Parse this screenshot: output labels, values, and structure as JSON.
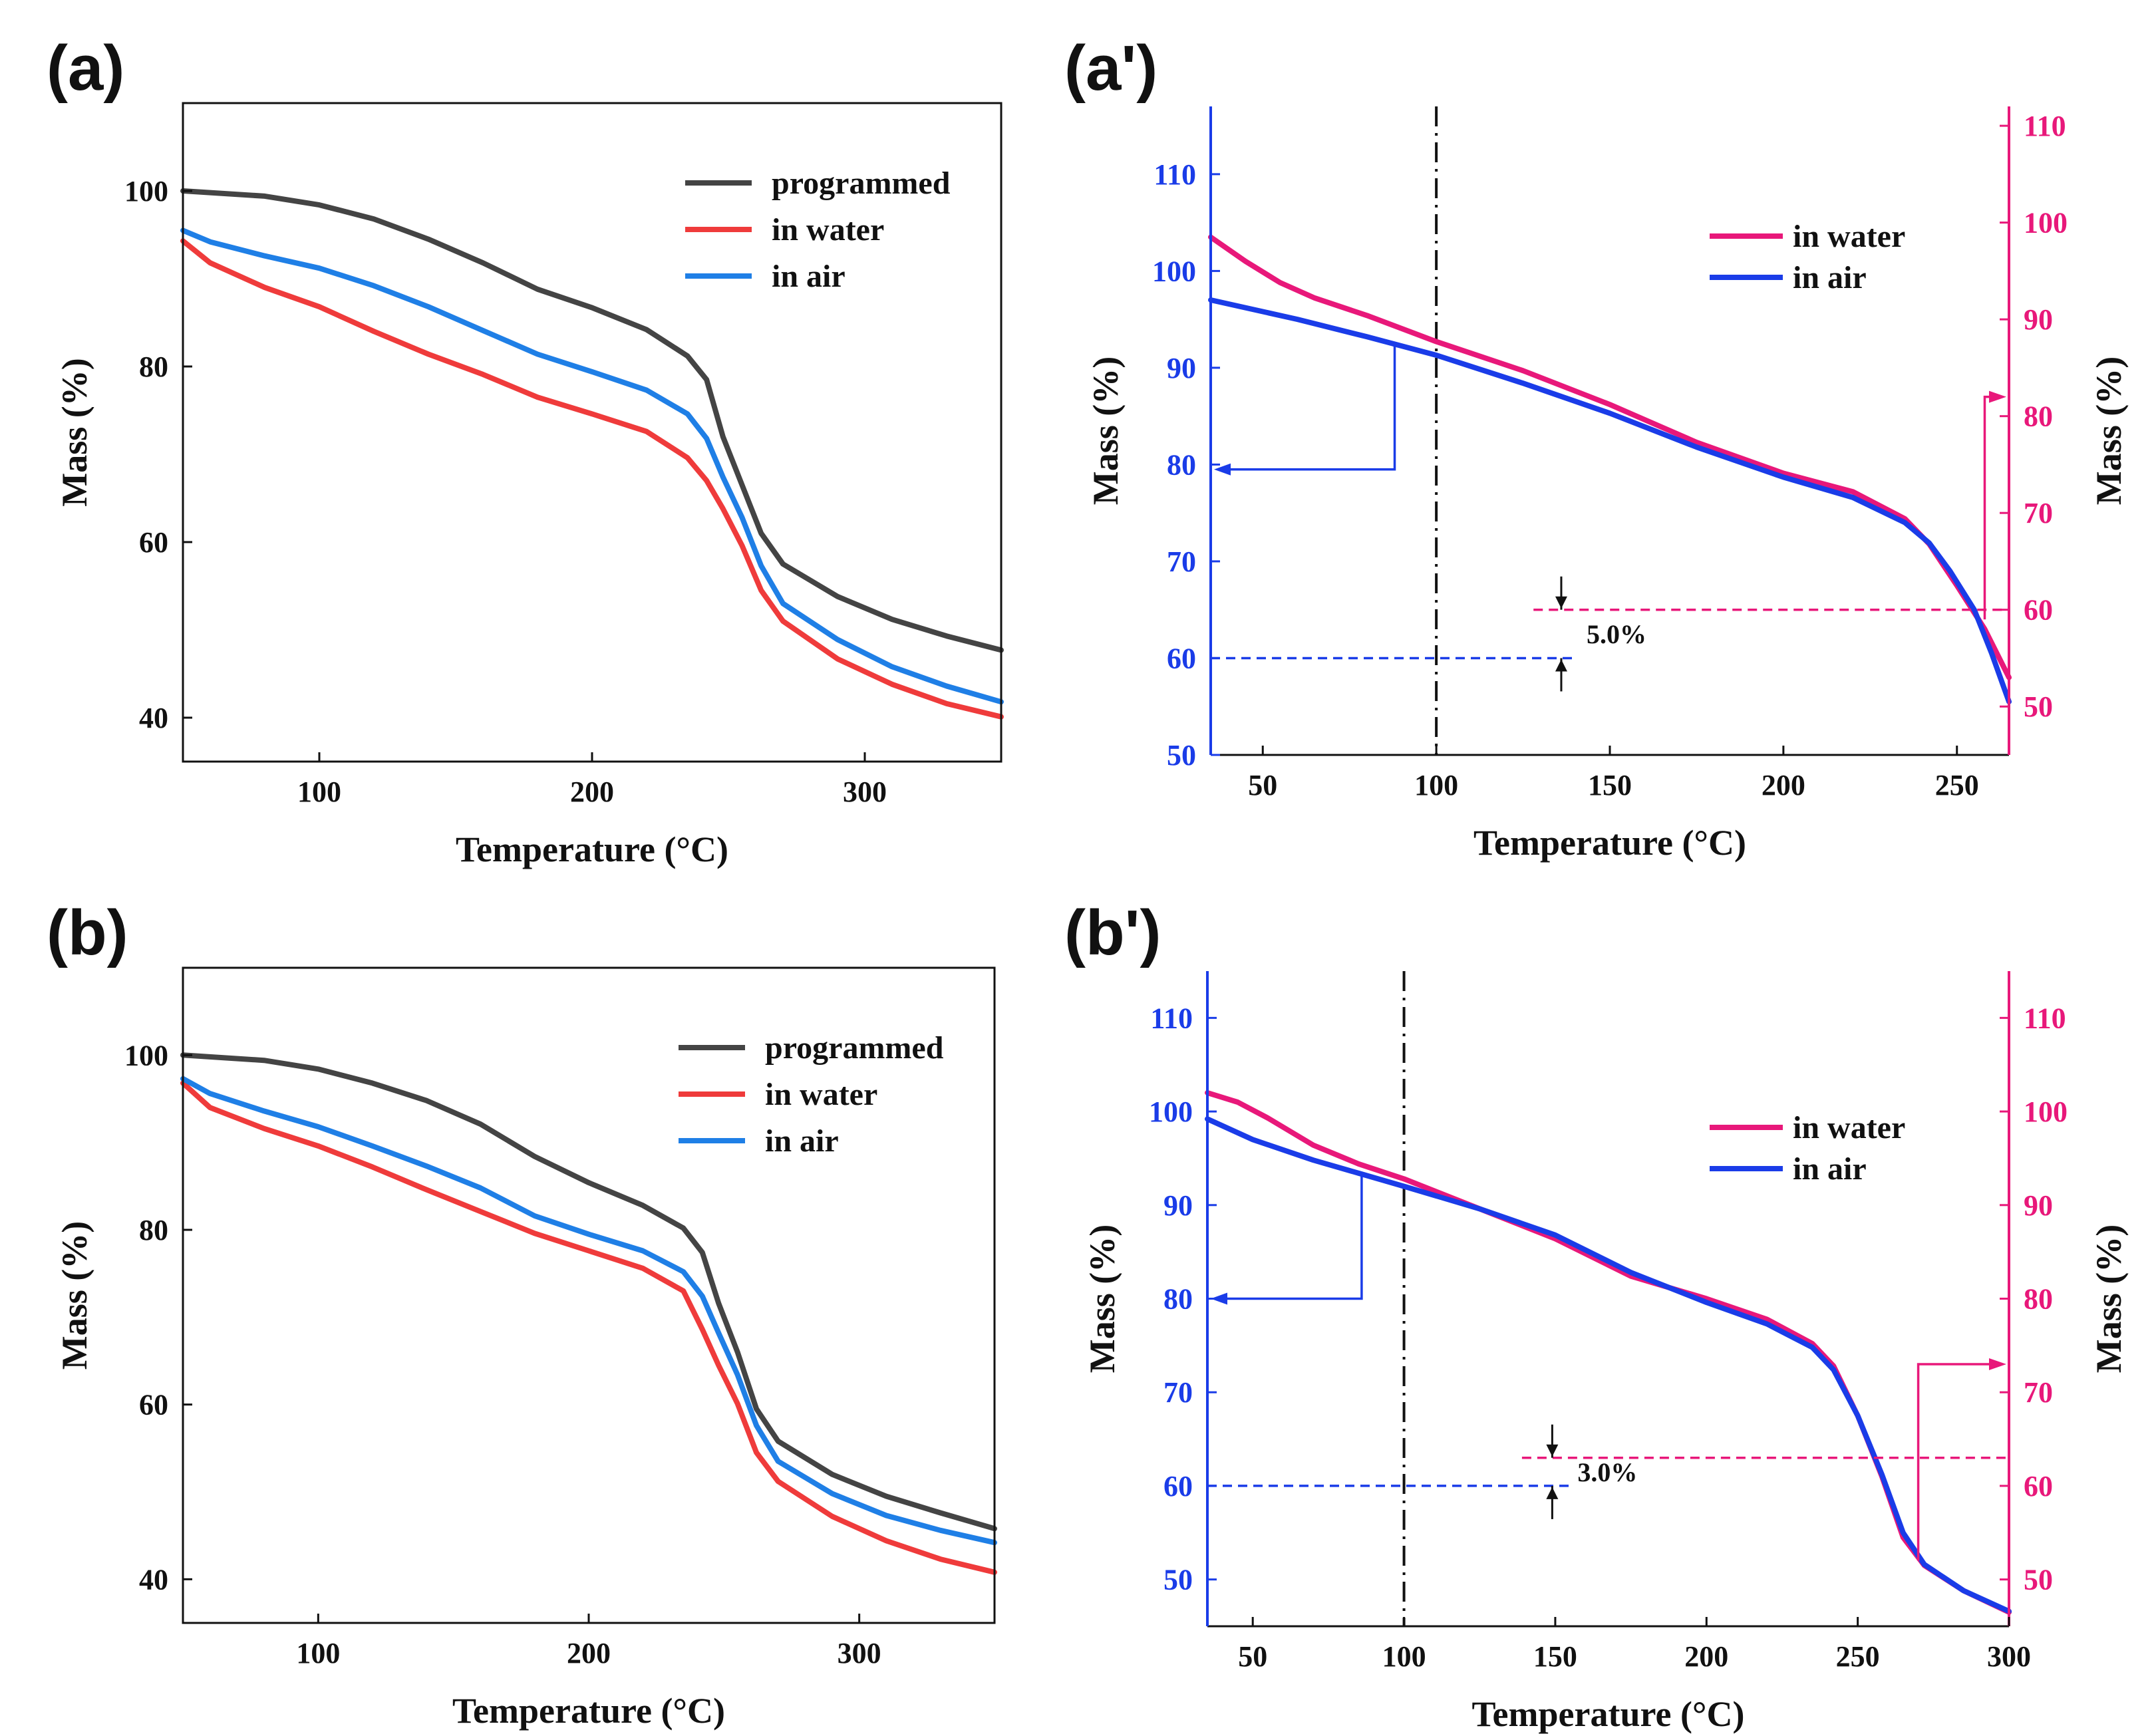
{
  "chart_data": [
    {
      "panel": "(a)",
      "type": "line",
      "xlabel": "Temperature (°C)",
      "ylabel": "Mass (%)",
      "xlim": [
        50,
        350
      ],
      "ylim": [
        35,
        110
      ],
      "xticks": [
        100,
        200,
        300
      ],
      "yticks": [
        40,
        60,
        80,
        100
      ],
      "legend": "top-right",
      "series": [
        {
          "name": "programmed",
          "color": "#444444",
          "points": [
            [
              50,
              100
            ],
            [
              80,
              99.4
            ],
            [
              100,
              98.4
            ],
            [
              120,
              96.8
            ],
            [
              140,
              94.5
            ],
            [
              160,
              91.8
            ],
            [
              180,
              88.8
            ],
            [
              200,
              86.7
            ],
            [
              220,
              84.2
            ],
            [
              235,
              81.2
            ],
            [
              242,
              78.5
            ],
            [
              248,
              72
            ],
            [
              255,
              66.5
            ],
            [
              262,
              61
            ],
            [
              270,
              57.5
            ],
            [
              290,
              53.8
            ],
            [
              310,
              51.2
            ],
            [
              330,
              49.3
            ],
            [
              350,
              47.7
            ]
          ]
        },
        {
          "name": "in water",
          "color": "#ef3b3b",
          "points": [
            [
              50,
              94.3
            ],
            [
              60,
              91.8
            ],
            [
              80,
              89
            ],
            [
              100,
              86.8
            ],
            [
              120,
              84
            ],
            [
              140,
              81.4
            ],
            [
              160,
              79.1
            ],
            [
              180,
              76.5
            ],
            [
              200,
              74.6
            ],
            [
              220,
              72.6
            ],
            [
              235,
              69.6
            ],
            [
              242,
              67
            ],
            [
              248,
              63.8
            ],
            [
              255,
              59.6
            ],
            [
              262,
              54.5
            ],
            [
              270,
              51
            ],
            [
              290,
              46.7
            ],
            [
              310,
              43.8
            ],
            [
              330,
              41.6
            ],
            [
              350,
              40.1
            ]
          ]
        },
        {
          "name": "in air",
          "color": "#1f7fe6",
          "points": [
            [
              50,
              95.5
            ],
            [
              60,
              94.2
            ],
            [
              80,
              92.6
            ],
            [
              100,
              91.2
            ],
            [
              120,
              89.2
            ],
            [
              140,
              86.8
            ],
            [
              160,
              84.1
            ],
            [
              180,
              81.4
            ],
            [
              200,
              79.4
            ],
            [
              220,
              77.3
            ],
            [
              235,
              74.6
            ],
            [
              242,
              71.8
            ],
            [
              248,
              67.4
            ],
            [
              255,
              62.8
            ],
            [
              262,
              57.3
            ],
            [
              270,
              53
            ],
            [
              290,
              48.9
            ],
            [
              310,
              45.8
            ],
            [
              330,
              43.6
            ],
            [
              350,
              41.8
            ]
          ]
        }
      ]
    },
    {
      "panel": "(a')",
      "type": "line",
      "xlabel": "Temperature (°C)",
      "ylabel_left": "Mass (%)",
      "ylabel_right": "Mass (%)",
      "xlim": [
        35,
        265
      ],
      "ylim_left": [
        50,
        117
      ],
      "ylim_right": [
        45,
        112
      ],
      "xticks": [
        50,
        100,
        150,
        200,
        250
      ],
      "yticks_left": [
        50,
        60,
        70,
        80,
        90,
        100,
        110
      ],
      "yticks_right": [
        50,
        60,
        70,
        80,
        90,
        100,
        110
      ],
      "left_axis_color": "#1a3ce8",
      "right_axis_color": "#e8187a",
      "legend": "top-right",
      "vline_x": 100,
      "annotation": "5.0%",
      "hline_left": {
        "y": 60,
        "color": "#1a3ce8"
      },
      "hline_right": {
        "y": 60,
        "color": "#e8187a"
      },
      "series": [
        {
          "name": "in water",
          "axis": "right",
          "color": "#e8187a",
          "points": [
            [
              35,
              98.5
            ],
            [
              45,
              96
            ],
            [
              55,
              93.8
            ],
            [
              65,
              92.2
            ],
            [
              80,
              90.4
            ],
            [
              100,
              87.7
            ],
            [
              125,
              84.7
            ],
            [
              150,
              81.2
            ],
            [
              175,
              77.3
            ],
            [
              200,
              74.1
            ],
            [
              220,
              72.2
            ],
            [
              235,
              69.4
            ],
            [
              242,
              66.8
            ],
            [
              250,
              62.5
            ],
            [
              258,
              58
            ],
            [
              265,
              53
            ]
          ]
        },
        {
          "name": "in air",
          "axis": "left",
          "color": "#1a3ce8",
          "points": [
            [
              35,
              97
            ],
            [
              60,
              95
            ],
            [
              80,
              93.2
            ],
            [
              100,
              91.3
            ],
            [
              125,
              88.4
            ],
            [
              150,
              85.3
            ],
            [
              175,
              81.8
            ],
            [
              200,
              78.7
            ],
            [
              220,
              76.6
            ],
            [
              235,
              74
            ],
            [
              242,
              71.9
            ],
            [
              248,
              69
            ],
            [
              255,
              65
            ],
            [
              260,
              60.5
            ],
            [
              265,
              55.5
            ]
          ]
        }
      ]
    },
    {
      "panel": "(b)",
      "type": "line",
      "xlabel": "Temperature (°C)",
      "ylabel": "Mass (%)",
      "xlim": [
        50,
        350
      ],
      "ylim": [
        35,
        110
      ],
      "xticks": [
        100,
        200,
        300
      ],
      "yticks": [
        40,
        60,
        80,
        100
      ],
      "legend": "top-right",
      "series": [
        {
          "name": "programmed",
          "color": "#444444",
          "points": [
            [
              50,
              100
            ],
            [
              80,
              99.4
            ],
            [
              100,
              98.4
            ],
            [
              120,
              96.8
            ],
            [
              140,
              94.8
            ],
            [
              160,
              92.1
            ],
            [
              180,
              88.4
            ],
            [
              200,
              85.4
            ],
            [
              220,
              82.8
            ],
            [
              235,
              80.2
            ],
            [
              242,
              77.4
            ],
            [
              248,
              71.6
            ],
            [
              255,
              66
            ],
            [
              262,
              59.5
            ],
            [
              270,
              55.8
            ],
            [
              290,
              52
            ],
            [
              310,
              49.5
            ],
            [
              330,
              47.6
            ],
            [
              350,
              45.8
            ]
          ]
        },
        {
          "name": "in water",
          "color": "#ef3b3b",
          "points": [
            [
              50,
              96.8
            ],
            [
              60,
              94
            ],
            [
              80,
              91.6
            ],
            [
              100,
              89.6
            ],
            [
              120,
              87.2
            ],
            [
              140,
              84.6
            ],
            [
              160,
              82.1
            ],
            [
              180,
              79.6
            ],
            [
              200,
              77.6
            ],
            [
              220,
              75.6
            ],
            [
              235,
              73
            ],
            [
              242,
              68.6
            ],
            [
              248,
              64.5
            ],
            [
              255,
              60.1
            ],
            [
              262,
              54.5
            ],
            [
              270,
              51.2
            ],
            [
              290,
              47.2
            ],
            [
              310,
              44.4
            ],
            [
              330,
              42.3
            ],
            [
              350,
              40.8
            ]
          ]
        },
        {
          "name": "in air",
          "color": "#1f7fe6",
          "points": [
            [
              50,
              97.3
            ],
            [
              60,
              95.6
            ],
            [
              80,
              93.6
            ],
            [
              100,
              91.8
            ],
            [
              120,
              89.6
            ],
            [
              140,
              87.3
            ],
            [
              160,
              84.8
            ],
            [
              180,
              81.6
            ],
            [
              200,
              79.5
            ],
            [
              220,
              77.6
            ],
            [
              235,
              75.2
            ],
            [
              242,
              72.4
            ],
            [
              248,
              68.2
            ],
            [
              255,
              63.4
            ],
            [
              262,
              57.6
            ],
            [
              270,
              53.5
            ],
            [
              290,
              49.8
            ],
            [
              310,
              47.3
            ],
            [
              330,
              45.6
            ],
            [
              350,
              44.2
            ]
          ]
        }
      ]
    },
    {
      "panel": "(b')",
      "type": "line",
      "xlabel": "Temperature (°C)",
      "ylabel_left": "Mass (%)",
      "ylabel_right": "Mass (%)",
      "xlim": [
        35,
        300
      ],
      "ylim_left": [
        45,
        115
      ],
      "ylim_right": [
        45,
        115
      ],
      "xticks": [
        50,
        100,
        150,
        200,
        250,
        300
      ],
      "yticks_left": [
        50,
        60,
        70,
        80,
        90,
        100,
        110
      ],
      "yticks_right": [
        50,
        60,
        70,
        80,
        90,
        100,
        110
      ],
      "left_axis_color": "#1a3ce8",
      "right_axis_color": "#e8187a",
      "legend": "top-right",
      "vline_x": 100,
      "annotation": "3.0%",
      "hline_left": {
        "y": 60,
        "color": "#1a3ce8"
      },
      "hline_right": {
        "y": 63,
        "color": "#e8187a"
      },
      "series": [
        {
          "name": "in water",
          "axis": "right",
          "color": "#e8187a",
          "points": [
            [
              35,
              102
            ],
            [
              45,
              101
            ],
            [
              55,
              99.3
            ],
            [
              70,
              96.4
            ],
            [
              85,
              94.4
            ],
            [
              100,
              92.8
            ],
            [
              125,
              89.6
            ],
            [
              150,
              86.4
            ],
            [
              175,
              82.4
            ],
            [
              200,
              80
            ],
            [
              220,
              77.8
            ],
            [
              235,
              75.2
            ],
            [
              242,
              72.8
            ],
            [
              250,
              67.5
            ],
            [
              258,
              61
            ],
            [
              265,
              54.5
            ],
            [
              272,
              51.5
            ],
            [
              285,
              48.8
            ],
            [
              300,
              46.5
            ]
          ]
        },
        {
          "name": "in air",
          "axis": "left",
          "color": "#1a3ce8",
          "points": [
            [
              35,
              99.2
            ],
            [
              50,
              97
            ],
            [
              70,
              94.8
            ],
            [
              85,
              93.4
            ],
            [
              100,
              92
            ],
            [
              125,
              89.6
            ],
            [
              150,
              86.8
            ],
            [
              175,
              82.8
            ],
            [
              200,
              79.6
            ],
            [
              220,
              77.3
            ],
            [
              235,
              74.8
            ],
            [
              242,
              72.4
            ],
            [
              250,
              67.5
            ],
            [
              258,
              61.2
            ],
            [
              265,
              55
            ],
            [
              272,
              51.6
            ],
            [
              285,
              48.8
            ],
            [
              300,
              46.6
            ]
          ]
        }
      ]
    }
  ]
}
